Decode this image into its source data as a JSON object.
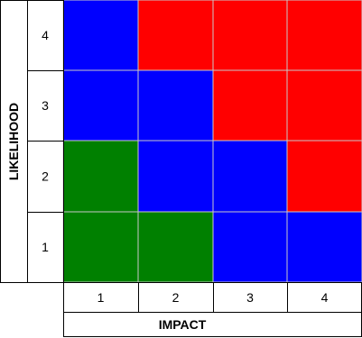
{
  "chart_data": {
    "type": "heatmap",
    "title": "",
    "xlabel": "IMPACT",
    "ylabel": "LIKELIHOOD",
    "x_categories": [
      "1",
      "2",
      "3",
      "4"
    ],
    "y_categories": [
      "1",
      "2",
      "3",
      "4"
    ],
    "colors": {
      "green": "#008000",
      "blue": "#0000ff",
      "red": "#ff0000"
    },
    "cells": [
      [
        "green",
        "green",
        "blue",
        "blue"
      ],
      [
        "green",
        "blue",
        "blue",
        "red"
      ],
      [
        "blue",
        "blue",
        "red",
        "red"
      ],
      [
        "blue",
        "red",
        "red",
        "red"
      ]
    ]
  }
}
